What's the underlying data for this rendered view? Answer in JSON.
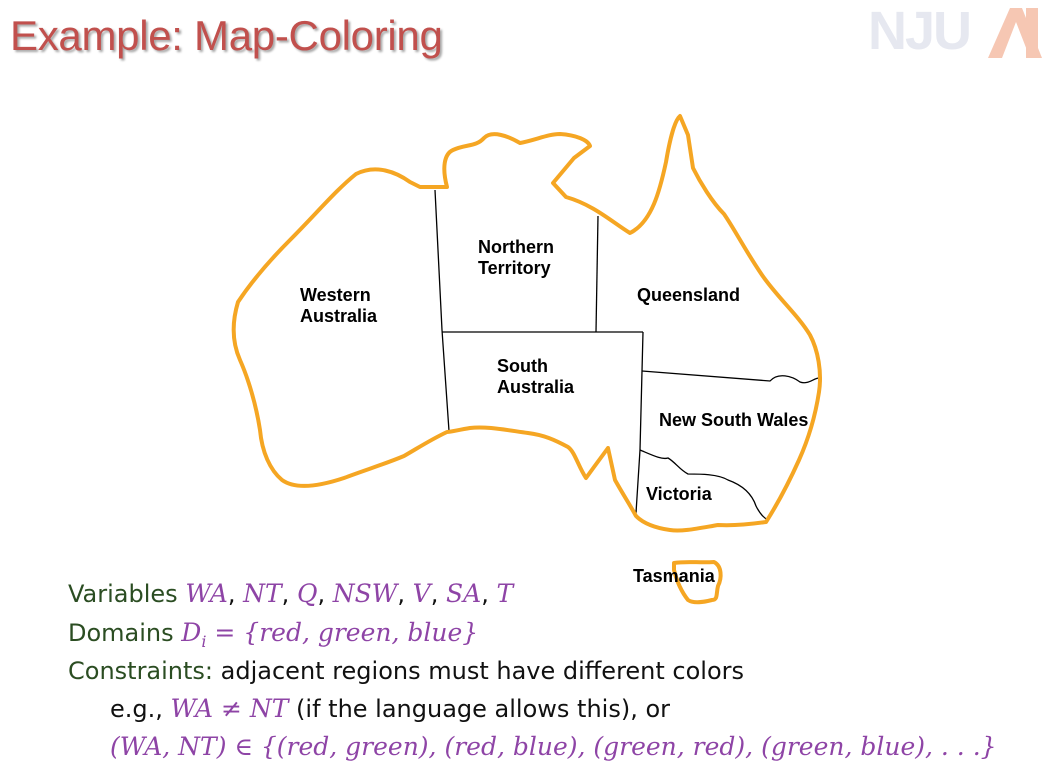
{
  "slide": {
    "title": "Example: Map-Coloring",
    "logo_text": "NJU",
    "logo_mark": "AI"
  },
  "map": {
    "regions": [
      {
        "id": "wa",
        "label": "Western\nAustralia"
      },
      {
        "id": "nt",
        "label": "Northern\nTerritory"
      },
      {
        "id": "q",
        "label": "Queensland"
      },
      {
        "id": "sa",
        "label": "South\nAustralia"
      },
      {
        "id": "nsw",
        "label": "New South Wales"
      },
      {
        "id": "v",
        "label": "Victoria"
      },
      {
        "id": "t",
        "label": "Tasmania"
      }
    ]
  },
  "content": {
    "variables": {
      "keyword": "Variables",
      "list": [
        "WA",
        "NT",
        "Q",
        "NSW",
        "V",
        "SA",
        "T"
      ]
    },
    "domains": {
      "keyword": "Domains",
      "expr": "D",
      "subscript": "i",
      "rest": " = {red, green, blue}"
    },
    "constraints": {
      "keyword": "Constraints:",
      "text": " adjacent regions must have different colors"
    },
    "example": {
      "prefix": "e.g., ",
      "expr": "WA ≠ NT",
      "suffix": " (if the language allows this), or"
    },
    "tuple_expr": "(WA, NT) ∈ {(red, green), (red, blue), (green, red), (green, blue), . . .}"
  },
  "colors": {
    "title": "#c1504d",
    "outline": "#f5a623",
    "keyword": "#2b4d22",
    "math": "#8e44a6"
  }
}
